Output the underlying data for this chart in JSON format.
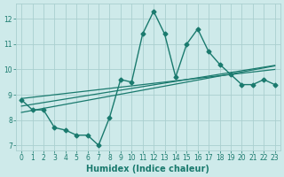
{
  "xlabel": "Humidex (Indice chaleur)",
  "bg_color": "#ceeaea",
  "line_color": "#1a7a6e",
  "grid_color": "#aacfcf",
  "x_data": [
    0,
    1,
    2,
    3,
    4,
    5,
    6,
    7,
    8,
    9,
    10,
    11,
    12,
    13,
    14,
    15,
    16,
    17,
    18,
    19,
    20,
    21,
    22,
    23
  ],
  "y_main": [
    8.8,
    8.4,
    8.4,
    7.7,
    7.6,
    7.4,
    7.4,
    7.0,
    8.1,
    9.6,
    9.5,
    11.4,
    12.3,
    11.4,
    9.7,
    11.0,
    11.6,
    10.7,
    10.2,
    9.8,
    9.4,
    9.4,
    9.6,
    9.4
  ],
  "y_reg1": [
    8.85,
    8.9,
    8.95,
    9.0,
    9.05,
    9.1,
    9.15,
    9.2,
    9.25,
    9.3,
    9.35,
    9.4,
    9.45,
    9.5,
    9.55,
    9.6,
    9.65,
    9.7,
    9.75,
    9.8,
    9.85,
    9.9,
    9.95,
    10.0
  ],
  "y_reg2": [
    8.3,
    8.38,
    8.46,
    8.54,
    8.62,
    8.7,
    8.78,
    8.86,
    8.94,
    9.02,
    9.1,
    9.18,
    9.26,
    9.34,
    9.42,
    9.5,
    9.58,
    9.66,
    9.74,
    9.82,
    9.9,
    9.98,
    10.06,
    10.14
  ],
  "y_reg3": [
    8.55,
    8.62,
    8.69,
    8.76,
    8.83,
    8.9,
    8.97,
    9.04,
    9.11,
    9.18,
    9.25,
    9.32,
    9.39,
    9.46,
    9.53,
    9.6,
    9.67,
    9.74,
    9.81,
    9.88,
    9.95,
    10.02,
    10.09,
    10.16
  ],
  "xlim": [
    -0.5,
    23.5
  ],
  "ylim": [
    6.8,
    12.6
  ],
  "yticks": [
    7,
    8,
    9,
    10,
    11,
    12
  ],
  "xticks": [
    0,
    1,
    2,
    3,
    4,
    5,
    6,
    7,
    8,
    9,
    10,
    11,
    12,
    13,
    14,
    15,
    16,
    17,
    18,
    19,
    20,
    21,
    22,
    23
  ],
  "marker": "D",
  "markersize": 2.5,
  "linewidth": 1.0,
  "reg_linewidth": 0.9,
  "title_fontsize": 7,
  "axis_fontsize": 7,
  "tick_fontsize": 5.5
}
